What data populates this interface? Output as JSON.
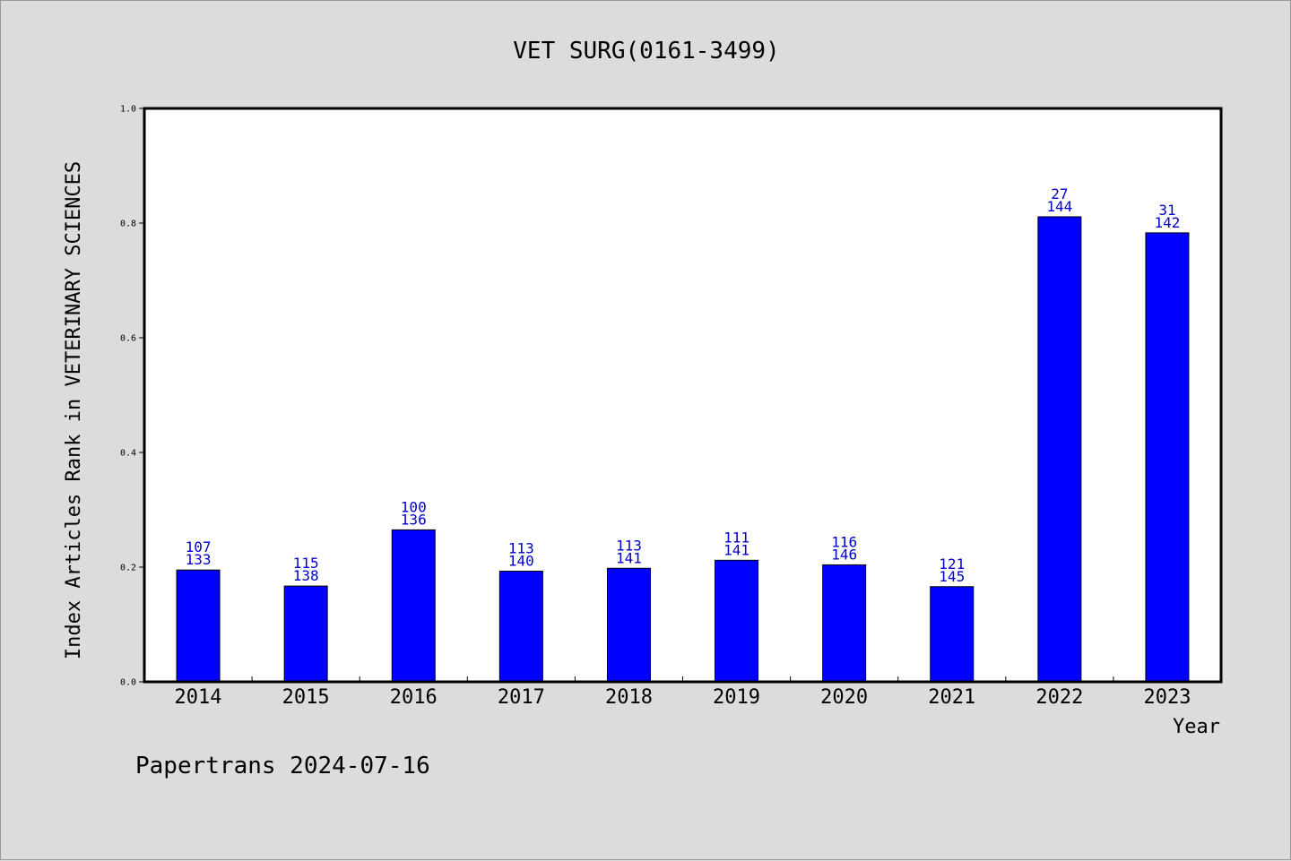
{
  "chart_data": {
    "type": "bar",
    "title": "VET SURG(0161-3499)",
    "xlabel": "Year",
    "ylabel": "Index Articles Rank in VETERINARY SCIENCES",
    "ylim": [
      0,
      1.0
    ],
    "yticks": [
      "0.0",
      "0.2",
      "0.4",
      "0.6",
      "0.8",
      "1.0"
    ],
    "grid": false,
    "bar_color": "#0000ff",
    "label_color": "#0000cc",
    "categories": [
      "2014",
      "2015",
      "2016",
      "2017",
      "2018",
      "2019",
      "2020",
      "2021",
      "2022",
      "2023"
    ],
    "values": [
      0.195,
      0.167,
      0.265,
      0.193,
      0.198,
      0.212,
      0.204,
      0.166,
      0.811,
      0.783
    ],
    "labels_top": [
      "107",
      "115",
      "100",
      "113",
      "113",
      "111",
      "116",
      "121",
      "27",
      "31"
    ],
    "labels_bottom": [
      "133",
      "138",
      "136",
      "140",
      "141",
      "141",
      "146",
      "145",
      "144",
      "142"
    ]
  },
  "footer": "Papertrans 2024-07-16"
}
